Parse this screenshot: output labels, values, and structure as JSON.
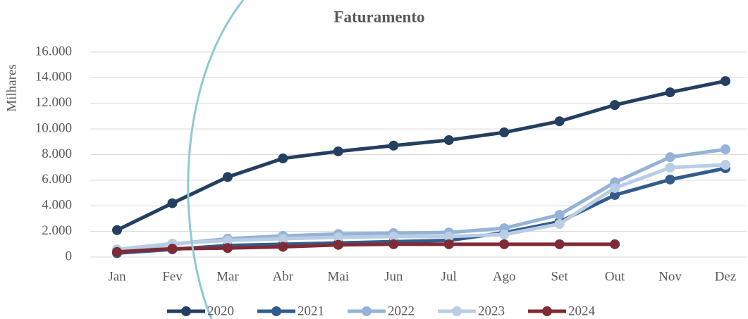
{
  "chart_data": {
    "type": "line",
    "title": "Faturamento",
    "y_label": "Milhares",
    "categories": [
      "Jan",
      "Fev",
      "Mar",
      "Abr",
      "Mai",
      "Jun",
      "Jul",
      "Ago",
      "Set",
      "Out",
      "Nov",
      "Dez"
    ],
    "series": [
      {
        "name": "2020",
        "color": "#243f60",
        "values": [
          2100,
          4200,
          6250,
          7700,
          8250,
          8700,
          9130,
          9730,
          10600,
          11870,
          12860,
          13740
        ]
      },
      {
        "name": "2021",
        "color": "#335b8c",
        "values": [
          300,
          600,
          900,
          1000,
          1100,
          1200,
          1300,
          1900,
          2750,
          4840,
          6050,
          6930
        ]
      },
      {
        "name": "2022",
        "color": "#95b3d7",
        "values": [
          500,
          1000,
          1430,
          1650,
          1800,
          1870,
          1920,
          2250,
          3300,
          5830,
          7800,
          8410
        ]
      },
      {
        "name": "2023",
        "color": "#b9cde5",
        "values": [
          600,
          1050,
          1300,
          1430,
          1540,
          1600,
          1600,
          1760,
          2580,
          5390,
          6980,
          7200
        ]
      },
      {
        "name": "2024",
        "color": "#7f2b36",
        "values": [
          400,
          650,
          700,
          800,
          950,
          1000,
          1000,
          1000,
          1000,
          1000,
          null,
          null
        ]
      }
    ],
    "ylim": [
      0,
      16000
    ],
    "yticks": [
      0,
      {
        "value": 2000,
        "label": "2.000"
      },
      {
        "value": 4000,
        "label": "4.000"
      },
      {
        "value": 6000,
        "label": "6.000"
      },
      {
        "value": 8000,
        "label": "8.000"
      },
      {
        "value": 10000,
        "label": "10.000"
      },
      {
        "value": 12000,
        "label": "12.000"
      },
      {
        "value": 14000,
        "label": "14.000"
      },
      {
        "value": 16000,
        "label": "16.000"
      }
    ],
    "grid": true,
    "legend": "bottom"
  }
}
